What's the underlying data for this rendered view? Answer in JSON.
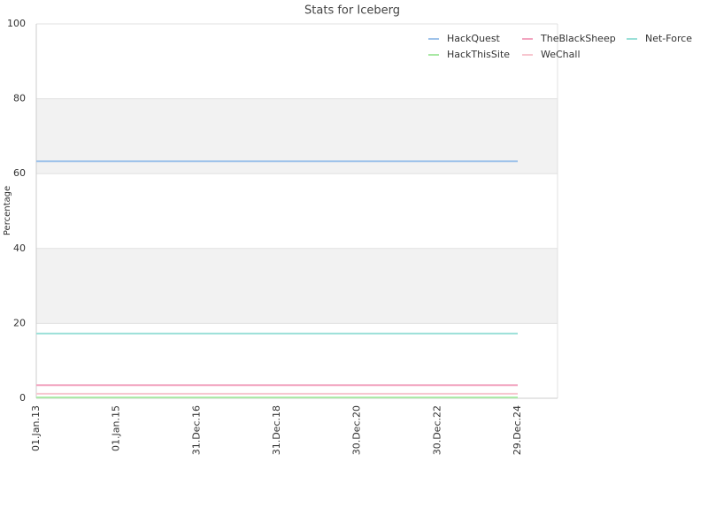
{
  "chart_data": {
    "type": "line",
    "title": "Stats for Iceberg",
    "y_label": "Percentage",
    "categories": [
      "01.Jan.13",
      "01.Jan.15",
      "31.Dec.16",
      "31.Dec.18",
      "30.Dec.20",
      "30.Dec.22",
      "29.Dec.24"
    ],
    "series": [
      {
        "name": "HackQuest",
        "color": "#9fc3ea",
        "values": [
          63.3,
          63.3,
          63.3,
          63.3,
          63.3,
          63.3,
          63.3
        ]
      },
      {
        "name": "TheBlackSheep",
        "color": "#f2a5c0",
        "values": [
          3.5,
          3.5,
          3.5,
          3.5,
          3.5,
          3.5,
          3.5
        ]
      },
      {
        "name": "Net-Force",
        "color": "#9be0d8",
        "values": [
          17.3,
          17.3,
          17.3,
          17.3,
          17.3,
          17.3,
          17.3
        ]
      },
      {
        "name": "HackThisSite",
        "color": "#a9e8a4",
        "values": [
          0.2,
          0.2,
          0.2,
          0.2,
          0.2,
          0.2,
          0.2
        ]
      },
      {
        "name": "WeChall",
        "color": "#f7c6cf",
        "values": [
          1.2,
          1.2,
          1.2,
          1.2,
          1.2,
          1.2,
          1.2
        ]
      }
    ],
    "ylim": [
      0,
      100
    ],
    "yticks": [
      0,
      20,
      40,
      60,
      80,
      100
    ],
    "grid": true,
    "legend": "top-right"
  }
}
